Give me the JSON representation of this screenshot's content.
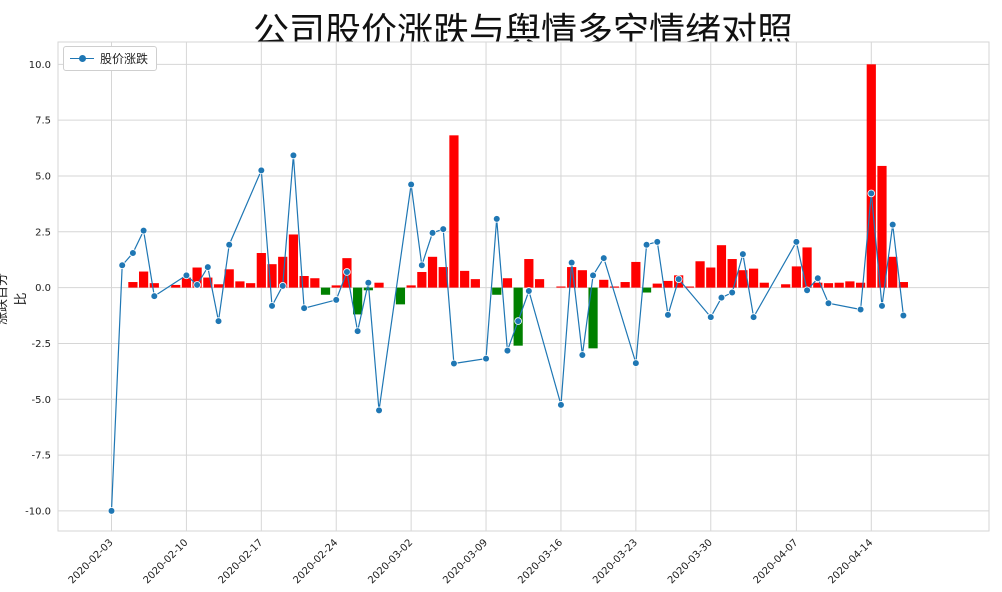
{
  "chart_data": {
    "type": "bar+line",
    "title": "公司股价涨跌与舆情多空情绪对照",
    "xlabel": "",
    "ylabel": "涨跌百分比",
    "ylim": [
      -10.9,
      11.0
    ],
    "yticks": [
      -10.0,
      -7.5,
      -5.0,
      -2.5,
      0.0,
      2.5,
      5.0,
      7.5,
      10.0
    ],
    "xlim": [
      "2020-01-29",
      "2020-04-25"
    ],
    "xticks": [
      "2020-02-03",
      "2020-02-10",
      "2020-02-17",
      "2020-02-24",
      "2020-03-02",
      "2020-03-09",
      "2020-03-16",
      "2020-03-23",
      "2020-03-30",
      "2020-04-07",
      "2020-04-14"
    ],
    "grid": true,
    "legend": {
      "position": "top-left",
      "entries": [
        "股价涨跌"
      ]
    },
    "colors": {
      "positive_bar": "#ff0000",
      "negative_bar": "#008000",
      "line": "#1f77b4",
      "grid": "#d6d6d6"
    },
    "line_series": {
      "name": "股价涨跌",
      "points": [
        [
          "2020-02-03",
          -10.0
        ],
        [
          "2020-02-04",
          1.0
        ],
        [
          "2020-02-05",
          1.55
        ],
        [
          "2020-02-06",
          2.55
        ],
        [
          "2020-02-07",
          -0.38
        ],
        [
          "2020-02-10",
          0.55
        ],
        [
          "2020-02-11",
          0.12
        ],
        [
          "2020-02-12",
          0.92
        ],
        [
          "2020-02-13",
          -1.5
        ],
        [
          "2020-02-14",
          1.92
        ],
        [
          "2020-02-17",
          5.25
        ],
        [
          "2020-02-18",
          -0.82
        ],
        [
          "2020-02-19",
          0.08
        ],
        [
          "2020-02-20",
          5.92
        ],
        [
          "2020-02-21",
          -0.92
        ],
        [
          "2020-02-24",
          -0.55
        ],
        [
          "2020-02-25",
          0.7
        ],
        [
          "2020-02-26",
          -1.95
        ],
        [
          "2020-02-27",
          0.22
        ],
        [
          "2020-02-28",
          -5.5
        ],
        [
          "2020-03-02",
          4.62
        ],
        [
          "2020-03-03",
          1.0
        ],
        [
          "2020-03-04",
          2.45
        ],
        [
          "2020-03-05",
          2.62
        ],
        [
          "2020-03-06",
          -3.4
        ],
        [
          "2020-03-09",
          -3.18
        ],
        [
          "2020-03-10",
          3.08
        ],
        [
          "2020-03-11",
          -2.82
        ],
        [
          "2020-03-12",
          -1.5
        ],
        [
          "2020-03-13",
          -0.15
        ],
        [
          "2020-03-16",
          -5.25
        ],
        [
          "2020-03-17",
          1.12
        ],
        [
          "2020-03-18",
          -3.02
        ],
        [
          "2020-03-19",
          0.55
        ],
        [
          "2020-03-20",
          1.32
        ],
        [
          "2020-03-23",
          -3.38
        ],
        [
          "2020-03-24",
          1.92
        ],
        [
          "2020-03-25",
          2.05
        ],
        [
          "2020-03-26",
          -1.22
        ],
        [
          "2020-03-27",
          0.38
        ],
        [
          "2020-03-30",
          -1.32
        ],
        [
          "2020-03-31",
          -0.45
        ],
        [
          "2020-04-01",
          -0.22
        ],
        [
          "2020-04-02",
          1.5
        ],
        [
          "2020-04-03",
          -1.32
        ],
        [
          "2020-04-07",
          2.05
        ],
        [
          "2020-04-08",
          -0.12
        ],
        [
          "2020-04-09",
          0.42
        ],
        [
          "2020-04-10",
          -0.7
        ],
        [
          "2020-04-13",
          -0.98
        ],
        [
          "2020-04-14",
          4.22
        ],
        [
          "2020-04-15",
          -0.82
        ],
        [
          "2020-04-16",
          2.82
        ],
        [
          "2020-04-17",
          -1.25
        ]
      ]
    },
    "bar_series": {
      "points": [
        [
          "2020-02-05",
          0.25
        ],
        [
          "2020-02-06",
          0.72
        ],
        [
          "2020-02-07",
          0.2
        ],
        [
          "2020-02-09",
          0.12
        ],
        [
          "2020-02-10",
          0.45
        ],
        [
          "2020-02-11",
          0.9
        ],
        [
          "2020-02-12",
          0.45
        ],
        [
          "2020-02-13",
          0.15
        ],
        [
          "2020-02-14",
          0.82
        ],
        [
          "2020-02-15",
          0.28
        ],
        [
          "2020-02-16",
          0.2
        ],
        [
          "2020-02-17",
          1.55
        ],
        [
          "2020-02-18",
          1.05
        ],
        [
          "2020-02-19",
          1.38
        ],
        [
          "2020-02-20",
          2.38
        ],
        [
          "2020-02-21",
          0.52
        ],
        [
          "2020-02-22",
          0.42
        ],
        [
          "2020-02-23",
          -0.32
        ],
        [
          "2020-02-24",
          0.1
        ],
        [
          "2020-02-25",
          1.32
        ],
        [
          "2020-02-26",
          -1.2
        ],
        [
          "2020-02-27",
          -0.12
        ],
        [
          "2020-02-28",
          0.22
        ],
        [
          "2020-03-01",
          -0.75
        ],
        [
          "2020-03-02",
          0.1
        ],
        [
          "2020-03-03",
          0.7
        ],
        [
          "2020-03-04",
          1.38
        ],
        [
          "2020-03-05",
          0.92
        ],
        [
          "2020-03-06",
          6.82
        ],
        [
          "2020-03-07",
          0.75
        ],
        [
          "2020-03-08",
          0.38
        ],
        [
          "2020-03-10",
          -0.32
        ],
        [
          "2020-03-11",
          0.42
        ],
        [
          "2020-03-12",
          -2.6
        ],
        [
          "2020-03-13",
          1.28
        ],
        [
          "2020-03-14",
          0.38
        ],
        [
          "2020-03-16",
          0.05
        ],
        [
          "2020-03-17",
          0.92
        ],
        [
          "2020-03-18",
          0.78
        ],
        [
          "2020-03-19",
          -2.72
        ],
        [
          "2020-03-20",
          0.35
        ],
        [
          "2020-03-21",
          0.05
        ],
        [
          "2020-03-22",
          0.25
        ],
        [
          "2020-03-23",
          1.15
        ],
        [
          "2020-03-24",
          -0.22
        ],
        [
          "2020-03-25",
          0.18
        ],
        [
          "2020-03-26",
          0.3
        ],
        [
          "2020-03-27",
          0.55
        ],
        [
          "2020-03-28",
          0.05
        ],
        [
          "2020-03-29",
          1.18
        ],
        [
          "2020-03-30",
          0.9
        ],
        [
          "2020-03-31",
          1.9
        ],
        [
          "2020-04-01",
          1.28
        ],
        [
          "2020-04-02",
          0.78
        ],
        [
          "2020-04-03",
          0.85
        ],
        [
          "2020-04-04",
          0.22
        ],
        [
          "2020-04-06",
          0.15
        ],
        [
          "2020-04-07",
          0.95
        ],
        [
          "2020-04-08",
          1.8
        ],
        [
          "2020-04-09",
          0.22
        ],
        [
          "2020-04-10",
          0.2
        ],
        [
          "2020-04-11",
          0.22
        ],
        [
          "2020-04-12",
          0.28
        ],
        [
          "2020-04-13",
          0.22
        ],
        [
          "2020-04-14",
          10.0
        ],
        [
          "2020-04-15",
          5.45
        ],
        [
          "2020-04-16",
          1.38
        ],
        [
          "2020-04-17",
          0.25
        ]
      ]
    }
  }
}
